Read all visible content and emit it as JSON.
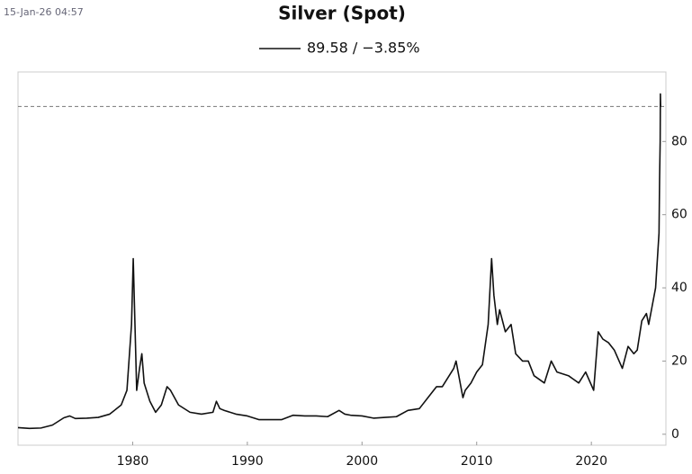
{
  "timestamp": "15-Jan-26 04:57",
  "chart_data": {
    "type": "line",
    "title": "Silver (Spot)",
    "series": [
      {
        "name": "89.58 / −3.85%",
        "color": "#111111",
        "x": [
          1970,
          1971,
          1972,
          1973,
          1974,
          1974.5,
          1975,
          1976,
          1977,
          1978,
          1979,
          1979.5,
          1979.9,
          1980.05,
          1980.2,
          1980.35,
          1980.6,
          1980.8,
          1981,
          1981.5,
          1982,
          1982.5,
          1983,
          1983.3,
          1984,
          1985,
          1986,
          1987,
          1987.3,
          1987.6,
          1988,
          1989,
          1990,
          1991,
          1992,
          1993,
          1994,
          1995,
          1996,
          1997,
          1998,
          1998.5,
          1999,
          2000,
          2001,
          2002,
          2003,
          2004,
          2005,
          2006,
          2006.5,
          2007,
          2008,
          2008.2,
          2008.8,
          2009,
          2009.5,
          2010,
          2010.5,
          2011,
          2011.3,
          2011.5,
          2011.8,
          2012,
          2012.5,
          2013,
          2013.4,
          2014,
          2014.5,
          2015,
          2015.9,
          2016.5,
          2017,
          2018,
          2018.9,
          2019.5,
          2020.2,
          2020.6,
          2021,
          2021.5,
          2022,
          2022.7,
          2023.2,
          2023.7,
          2024,
          2024.4,
          2024.8,
          2025,
          2025.3,
          2025.6,
          2025.8,
          2025.9,
          2025.95,
          2026,
          2026.02,
          2026.04
        ],
        "values": [
          1.8,
          1.6,
          1.7,
          2.5,
          4.5,
          5,
          4.3,
          4.4,
          4.6,
          5.5,
          8,
          12,
          30,
          48,
          30,
          12,
          18,
          22,
          14,
          9,
          6,
          8,
          13,
          12,
          8,
          6,
          5.5,
          6,
          9,
          7,
          6.5,
          5.5,
          5,
          4,
          4,
          4,
          5.2,
          5,
          5,
          4.8,
          6.5,
          5.5,
          5.2,
          5,
          4.4,
          4.6,
          4.8,
          6.5,
          7,
          11,
          13,
          13,
          18,
          20,
          10,
          12,
          14,
          17,
          19,
          30,
          48,
          38,
          30,
          34,
          28,
          30,
          22,
          20,
          20,
          16,
          14,
          20,
          17,
          16,
          14,
          17,
          12,
          28,
          26,
          25,
          23,
          18,
          24,
          22,
          23,
          31,
          33,
          30,
          35,
          40,
          50,
          55,
          70,
          80,
          93,
          89.58
        ]
      }
    ],
    "reference_line": 89.58,
    "xlim": [
      1970,
      2026.5
    ],
    "xticks": [
      1980,
      1990,
      2000,
      2010,
      2020
    ],
    "ylim": [
      -3,
      99
    ],
    "yticks": [
      0,
      20,
      40,
      60,
      80
    ],
    "grid": false
  }
}
